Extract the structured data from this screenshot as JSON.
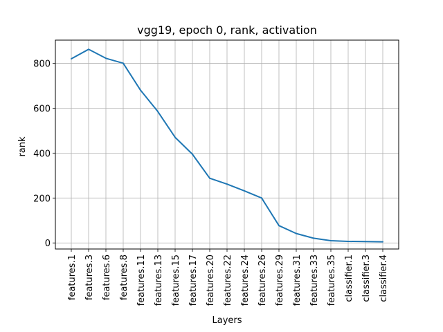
{
  "chart_data": {
    "type": "line",
    "title": "vgg19, epoch 0, rank, activation",
    "xlabel": "Layers",
    "ylabel": "rank",
    "categories": [
      "features.1",
      "features.3",
      "features.6",
      "features.8",
      "features.11",
      "features.13",
      "features.15",
      "features.17",
      "features.20",
      "features.22",
      "features.24",
      "features.26",
      "features.29",
      "features.31",
      "features.33",
      "features.35",
      "classifier.1",
      "classifier.3",
      "classifier.4"
    ],
    "series": [
      {
        "values": [
          820,
          862,
          822,
          800,
          680,
          585,
          470,
          395,
          288,
          262,
          232,
          200,
          77,
          42,
          21,
          10,
          7,
          6,
          5
        ]
      }
    ],
    "ylim": [
      -27,
      903
    ],
    "yticks": [
      0,
      200,
      400,
      600,
      800
    ],
    "grid": true,
    "colors": {
      "line": "#1f77b4",
      "grid": "#b0b0b0",
      "axes": "#000000"
    }
  }
}
